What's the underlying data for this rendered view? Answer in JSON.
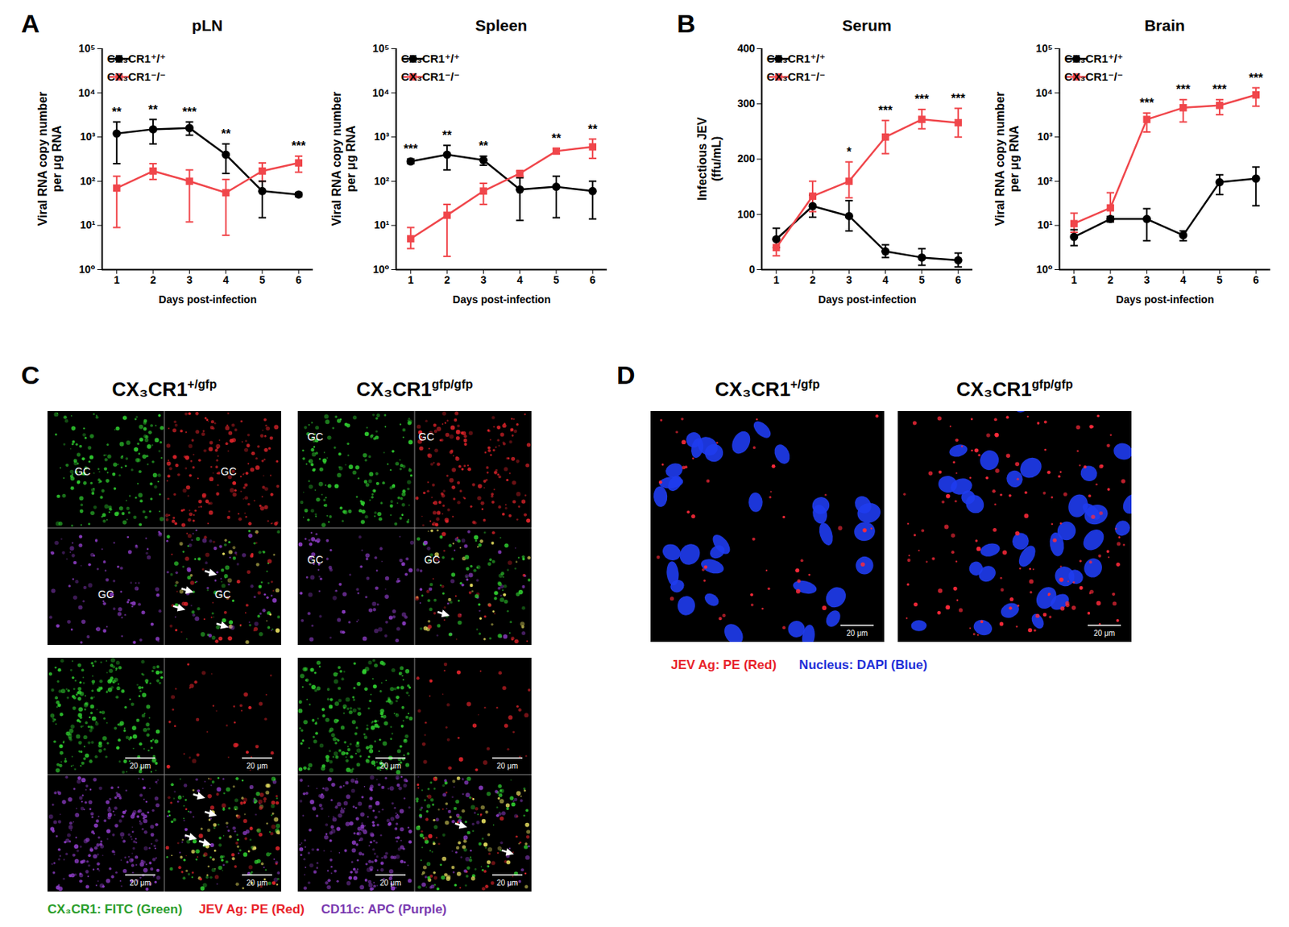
{
  "panel_labels": [
    "A",
    "B",
    "C",
    "D"
  ],
  "chart_data": [
    {
      "type": "line",
      "title": "pLN",
      "xlabel": "Days post-infection",
      "ylabel": [
        "Viral RNA copy number",
        "per μg RNA"
      ],
      "x": [
        1,
        2,
        3,
        4,
        5,
        6
      ],
      "xlim": [
        0.6,
        6.4
      ],
      "xticks": [
        1,
        2,
        3,
        4,
        5,
        6
      ],
      "log": "y",
      "ylim": [
        1,
        100000
      ],
      "yticks": [
        {
          "value": 1,
          "label": "10⁰"
        },
        {
          "value": 10,
          "label": "10¹"
        },
        {
          "value": 100,
          "label": "10²"
        },
        {
          "value": 1000,
          "label": "10³"
        },
        {
          "value": 10000,
          "label": "10⁴"
        },
        {
          "value": 100000,
          "label": "10⁵"
        }
      ],
      "legend": "top-left",
      "series": [
        {
          "name": "CX₃CR1⁺/⁺",
          "color": "#000000",
          "marker": "circle",
          "values": [
            1200,
            1500,
            1600,
            400,
            60,
            50
          ],
          "lower": [
            250,
            700,
            1100,
            150,
            15,
            45
          ],
          "upper": [
            2200,
            2500,
            2200,
            700,
            100,
            55
          ]
        },
        {
          "name": "CX₃CR1⁻/⁻",
          "color": "#f0464b",
          "marker": "square",
          "values": [
            70,
            170,
            100,
            55,
            170,
            260
          ],
          "lower": [
            9,
            110,
            12,
            6,
            100,
            160
          ],
          "upper": [
            130,
            250,
            180,
            110,
            260,
            370
          ]
        }
      ],
      "significance": [
        "**",
        "**",
        "***",
        "**",
        null,
        "***"
      ]
    },
    {
      "type": "line",
      "title": "Spleen",
      "xlabel": "Days post-infection",
      "ylabel": [
        "Viral RNA copy number",
        "per μg RNA"
      ],
      "x": [
        1,
        2,
        3,
        4,
        5,
        6
      ],
      "xlim": [
        0.6,
        6.4
      ],
      "xticks": [
        1,
        2,
        3,
        4,
        5,
        6
      ],
      "log": "y",
      "ylim": [
        1,
        100000
      ],
      "yticks": [
        {
          "value": 1,
          "label": "10⁰"
        },
        {
          "value": 10,
          "label": "10¹"
        },
        {
          "value": 100,
          "label": "10²"
        },
        {
          "value": 1000,
          "label": "10³"
        },
        {
          "value": 10000,
          "label": "10⁴"
        },
        {
          "value": 100000,
          "label": "10⁵"
        }
      ],
      "legend": "top-left",
      "series": [
        {
          "name": "CX₃CR1⁺/⁺",
          "color": "#000000",
          "marker": "circle",
          "values": [
            280,
            400,
            300,
            65,
            75,
            60
          ],
          "lower": [
            250,
            180,
            230,
            13,
            15,
            14
          ],
          "upper": [
            320,
            650,
            370,
            120,
            130,
            100
          ]
        },
        {
          "name": "CX₃CR1⁻/⁻",
          "color": "#f0464b",
          "marker": "square",
          "values": [
            5,
            17,
            60,
            150,
            480,
            600
          ],
          "lower": [
            3,
            2,
            30,
            130,
            420,
            330
          ],
          "upper": [
            9,
            30,
            90,
            170,
            550,
            900
          ]
        }
      ],
      "significance": [
        "***",
        "**",
        "**",
        null,
        "**",
        "**"
      ]
    },
    {
      "type": "line",
      "title": "Serum",
      "xlabel": "Days post-infection",
      "ylabel": [
        "Infectious JEV",
        "(ffu/mL)"
      ],
      "x": [
        1,
        2,
        3,
        4,
        5,
        6
      ],
      "xlim": [
        0.6,
        6.4
      ],
      "xticks": [
        1,
        2,
        3,
        4,
        5,
        6
      ],
      "ylim": [
        0,
        400
      ],
      "yticks": [
        0,
        100,
        200,
        300,
        400
      ],
      "legend": "top-left",
      "series": [
        {
          "name": "CX₃CR1⁺/⁺",
          "color": "#000000",
          "marker": "circle",
          "values": [
            55,
            115,
            97,
            33,
            22,
            17
          ],
          "lower": [
            40,
            95,
            70,
            22,
            8,
            5
          ],
          "upper": [
            75,
            135,
            125,
            45,
            38,
            30
          ]
        },
        {
          "name": "CX₃CR1⁻/⁻",
          "color": "#f0464b",
          "marker": "square",
          "values": [
            40,
            133,
            160,
            240,
            272,
            266
          ],
          "lower": [
            25,
            105,
            130,
            210,
            255,
            240
          ],
          "upper": [
            55,
            160,
            195,
            270,
            290,
            292
          ]
        }
      ],
      "significance": [
        null,
        null,
        "*",
        "***",
        "***",
        "***"
      ]
    },
    {
      "type": "line",
      "title": "Brain",
      "xlabel": "Days post-infection",
      "ylabel": [
        "Viral RNA copy number",
        "per μg RNA"
      ],
      "x": [
        1,
        2,
        3,
        4,
        5,
        6
      ],
      "xlim": [
        0.6,
        6.4
      ],
      "xticks": [
        1,
        2,
        3,
        4,
        5,
        6
      ],
      "log": "y",
      "ylim": [
        1,
        100000
      ],
      "yticks": [
        {
          "value": 1,
          "label": "10⁰"
        },
        {
          "value": 10,
          "label": "10¹"
        },
        {
          "value": 100,
          "label": "10²"
        },
        {
          "value": 1000,
          "label": "10³"
        },
        {
          "value": 10000,
          "label": "10⁴"
        },
        {
          "value": 100000,
          "label": "10⁵"
        }
      ],
      "legend": "top-left",
      "series": [
        {
          "name": "CX₃CR1⁺/⁺",
          "color": "#000000",
          "marker": "circle",
          "values": [
            5.5,
            14,
            14,
            6,
            95,
            115
          ],
          "lower": [
            3.5,
            12,
            4.5,
            4.5,
            50,
            28
          ],
          "upper": [
            8,
            16,
            24,
            7.5,
            140,
            210
          ]
        },
        {
          "name": "CX₃CR1⁻/⁻",
          "color": "#f0464b",
          "marker": "square",
          "values": [
            11,
            25,
            2500,
            4600,
            5200,
            9000
          ],
          "lower": [
            7,
            13,
            1300,
            2200,
            3200,
            5000
          ],
          "upper": [
            19,
            55,
            3500,
            7000,
            7000,
            13000
          ]
        }
      ],
      "significance": [
        null,
        null,
        "***",
        "***",
        "***",
        "***"
      ]
    }
  ],
  "panel_C": {
    "columns": [
      {
        "genotype": {
          "base": "CX₃CR1",
          "sup": "+/gfp"
        },
        "overview_labels": [
          "GC",
          "GC",
          "GC",
          "GC"
        ],
        "scale_bars": [
          "20 μm",
          "20 μm",
          "20 μm",
          "20 μm"
        ]
      },
      {
        "genotype": {
          "base": "CX₃CR1",
          "sup": "gfp/gfp"
        },
        "overview_labels": [
          "GC",
          "GC",
          "GC",
          "GC"
        ],
        "scale_bars": [
          "20 μm",
          "20 μm",
          "20 μm",
          "20 μm"
        ]
      }
    ],
    "legend": [
      {
        "text": "CX₃CR1: FITC (Green)",
        "color": "#2a9d2a"
      },
      {
        "text": "JEV Ag: PE (Red)",
        "color": "#e8232b"
      },
      {
        "text": "CD11c: APC (Purple)",
        "color": "#7a3ab0"
      }
    ]
  },
  "panel_D": {
    "columns": [
      {
        "genotype": {
          "base": "CX₃CR1",
          "sup": "+/gfp"
        },
        "scale_bar": "20 μm"
      },
      {
        "genotype": {
          "base": "CX₃CR1",
          "sup": "gfp/gfp"
        },
        "scale_bar": "20 μm"
      }
    ],
    "legend": [
      {
        "text": "JEV Ag: PE (Red)",
        "color": "#e8232b"
      },
      {
        "text": "Nucleus: DAPI (Blue)",
        "color": "#1f2fd8"
      }
    ]
  }
}
